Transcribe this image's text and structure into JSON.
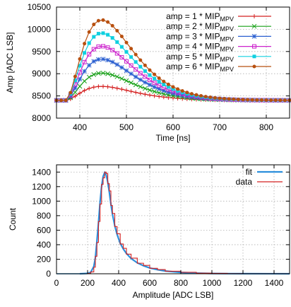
{
  "chart_data": [
    {
      "type": "line",
      "title": "",
      "xlabel": "Time [ns]",
      "ylabel": "Amp [ADC LSB]",
      "xlim": [
        350,
        850
      ],
      "ylim": [
        8000,
        10500
      ],
      "xticks": [
        400,
        500,
        600,
        700,
        800
      ],
      "yticks": [
        8000,
        8500,
        9000,
        9500,
        10000,
        10500
      ],
      "grid": true,
      "legend_position": "top-right",
      "baseline": 8400,
      "rise_start": 370,
      "series": [
        {
          "name": "amp = 1 * MIP",
          "subscript": "MPV",
          "color": "#d42020",
          "marker": "plus",
          "peak": 8715
        },
        {
          "name": "amp = 2 * MIP",
          "subscript": "MPV",
          "color": "#16a016",
          "marker": "cross",
          "peak": 9015
        },
        {
          "name": "amp = 3 * MIP",
          "subscript": "MPV",
          "color": "#2a5fd0",
          "marker": "star",
          "peak": 9330
        },
        {
          "name": "amp = 4 * MIP",
          "subscript": "MPV",
          "color": "#cc22cc",
          "marker": "square",
          "peak": 9620
        },
        {
          "name": "amp = 5 * MIP",
          "subscript": "MPV",
          "color": "#10d0e0",
          "marker": "filled-square",
          "peak": 9915
        },
        {
          "name": "amp = 6 * MIP",
          "subscript": "MPV",
          "color": "#b85010",
          "marker": "filled-circle",
          "peak": 10210
        }
      ]
    },
    {
      "type": "line",
      "title": "",
      "xlabel": "Amplitude [ADC LSB]",
      "ylabel": "Count",
      "xlim": [
        0,
        1500
      ],
      "ylim": [
        0,
        1500
      ],
      "xticks": [
        0,
        200,
        400,
        600,
        800,
        1000,
        1200,
        1400
      ],
      "yticks": [
        0,
        200,
        400,
        600,
        800,
        1000,
        1200,
        1400
      ],
      "grid": true,
      "legend_position": "top-right",
      "series": [
        {
          "name": "fit",
          "color": "#2c8fdc",
          "x": [
            150,
            200,
            220,
            240,
            250,
            260,
            270,
            280,
            290,
            300,
            310,
            320,
            330,
            340,
            350,
            360,
            375,
            390,
            410,
            430,
            450,
            480,
            520,
            560,
            600,
            650,
            700,
            800,
            900,
            1000,
            1100,
            1200,
            1500
          ],
          "y": [
            0,
            5,
            20,
            100,
            220,
            450,
            700,
            980,
            1200,
            1340,
            1395,
            1360,
            1260,
            1120,
            960,
            820,
            660,
            540,
            420,
            340,
            280,
            210,
            150,
            110,
            80,
            55,
            38,
            18,
            9,
            4,
            2,
            1,
            0
          ]
        },
        {
          "name": "data",
          "color": "#d42020",
          "x": [
            150,
            200,
            220,
            240,
            250,
            260,
            270,
            280,
            290,
            300,
            310,
            320,
            330,
            340,
            350,
            360,
            375,
            390,
            410,
            430,
            450,
            480,
            520,
            560,
            600,
            650,
            700,
            800,
            900,
            1000,
            1100,
            1200,
            1500
          ],
          "y": [
            0,
            6,
            25,
            90,
            240,
            430,
            720,
            960,
            1230,
            1320,
            1400,
            1380,
            1240,
            1140,
            940,
            830,
            650,
            550,
            410,
            350,
            270,
            215,
            145,
            115,
            75,
            58,
            35,
            20,
            8,
            5,
            2,
            1,
            0
          ]
        }
      ]
    }
  ]
}
